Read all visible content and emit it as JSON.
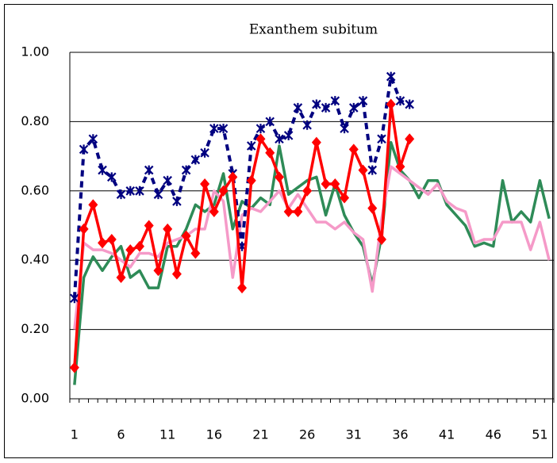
{
  "chart_data": {
    "type": "line",
    "title": "Exanthem subitum",
    "categories": [
      "1",
      null,
      null,
      null,
      null,
      "6",
      null,
      null,
      null,
      null,
      "11",
      null,
      null,
      null,
      null,
      "16",
      null,
      null,
      null,
      null,
      "21",
      null,
      null,
      null,
      null,
      "26",
      null,
      null,
      null,
      null,
      "31",
      null,
      null,
      null,
      null,
      "36",
      null,
      null,
      null,
      null,
      "41",
      null,
      null,
      null,
      null,
      "46",
      null,
      null,
      null,
      null,
      "51",
      null
    ],
    "ylim": [
      0,
      1
    ],
    "yticks": [
      {
        "value": 0,
        "label": "0.00"
      },
      {
        "value": 0.2,
        "label": "0.20"
      },
      {
        "value": 0.4,
        "label": "0.40"
      },
      {
        "value": 0.6,
        "label": "0.60"
      },
      {
        "value": 0.8,
        "label": "0.80"
      },
      {
        "value": 1,
        "label": "1.00"
      }
    ],
    "grid": true,
    "series": [
      {
        "color": "#2e8b57",
        "marker": "none",
        "dash": false,
        "values": [
          0.04,
          0.35,
          0.41,
          0.37,
          0.41,
          0.44,
          0.35,
          0.37,
          0.32,
          0.32,
          0.44,
          0.44,
          0.49,
          0.56,
          0.54,
          0.56,
          0.65,
          0.49,
          0.57,
          0.55,
          0.58,
          0.56,
          0.73,
          0.59,
          0.61,
          0.63,
          0.64,
          0.53,
          0.62,
          0.53,
          0.48,
          0.44,
          0.33,
          0.47,
          0.74,
          0.66,
          0.63,
          0.58,
          0.63,
          0.63,
          0.56,
          0.53,
          0.5,
          0.44,
          0.45,
          0.44,
          0.63,
          0.51,
          0.54,
          0.51,
          0.63,
          0.52
        ]
      },
      {
        "color": "#f59ac8",
        "marker": "none",
        "dash": false,
        "values": [
          0.2,
          0.45,
          0.43,
          0.43,
          0.42,
          0.4,
          0.38,
          0.42,
          0.42,
          0.41,
          0.45,
          0.46,
          0.47,
          0.49,
          0.49,
          0.6,
          0.57,
          0.35,
          0.53,
          0.55,
          0.54,
          0.57,
          0.6,
          0.55,
          0.59,
          0.55,
          0.51,
          0.51,
          0.49,
          0.51,
          0.48,
          0.46,
          0.31,
          0.52,
          0.67,
          0.65,
          0.63,
          0.61,
          0.59,
          0.62,
          0.57,
          0.55,
          0.54,
          0.45,
          0.46,
          0.46,
          0.51,
          0.51,
          0.51,
          0.43,
          0.51,
          0.4
        ]
      },
      {
        "color": "#000080",
        "marker": "star",
        "dash": true,
        "values": [
          0.29,
          0.72,
          0.75,
          0.66,
          0.64,
          0.59,
          0.6,
          0.6,
          0.66,
          0.59,
          0.63,
          0.57,
          0.66,
          0.69,
          0.71,
          0.78,
          0.78,
          0.65,
          0.44,
          0.73,
          0.78,
          0.8,
          0.75,
          0.76,
          0.84,
          0.79,
          0.85,
          0.84,
          0.86,
          0.78,
          0.84,
          0.86,
          0.66,
          0.75,
          0.93,
          0.86,
          0.85,
          null,
          null,
          null,
          null,
          null,
          null,
          null,
          null,
          null,
          null,
          null,
          null,
          null,
          null,
          null
        ]
      },
      {
        "color": "#ff0000",
        "marker": "diamond",
        "dash": false,
        "values": [
          0.09,
          0.49,
          0.56,
          0.45,
          0.46,
          0.35,
          0.43,
          0.44,
          0.5,
          0.37,
          0.49,
          0.36,
          0.47,
          0.42,
          0.62,
          0.54,
          0.6,
          0.64,
          0.32,
          0.63,
          0.75,
          0.71,
          0.64,
          0.54,
          0.54,
          0.6,
          0.74,
          0.62,
          0.62,
          0.58,
          0.72,
          0.66,
          0.55,
          0.46,
          0.85,
          0.67,
          0.75,
          null,
          null,
          null,
          null,
          null,
          null,
          null,
          null,
          null,
          null,
          null,
          null,
          null,
          null,
          null
        ]
      }
    ]
  }
}
